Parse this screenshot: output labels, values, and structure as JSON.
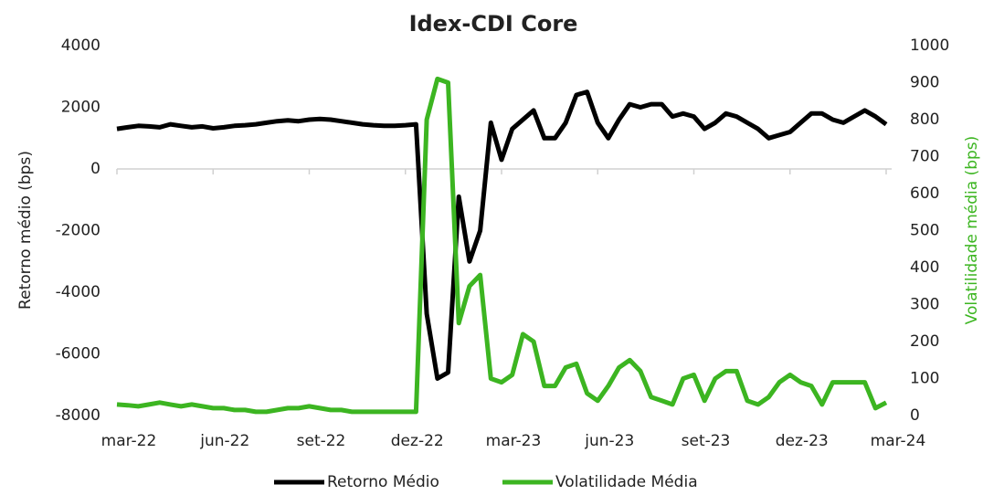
{
  "chart_data": {
    "type": "line",
    "title": "Idex-CDI Core",
    "y_label": "Retorno médio (bps)",
    "y2_label": "Volatilidade média (bps)",
    "categories": [
      "mar-22",
      null,
      null,
      null,
      null,
      null,
      null,
      null,
      null,
      "jun-22",
      null,
      null,
      null,
      null,
      null,
      null,
      null,
      null,
      "set-22",
      null,
      null,
      null,
      null,
      null,
      null,
      null,
      null,
      "dez-22",
      null,
      null,
      null,
      null,
      null,
      null,
      null,
      null,
      "mar-23",
      null,
      null,
      null,
      null,
      null,
      null,
      null,
      null,
      "jun-23",
      null,
      null,
      null,
      null,
      null,
      null,
      null,
      null,
      "set-23",
      null,
      null,
      null,
      null,
      null,
      null,
      null,
      null,
      "dez-23",
      null,
      null,
      null,
      null,
      null,
      null,
      null,
      null,
      "mar-24"
    ],
    "series": [
      {
        "name": "Retorno Médio",
        "color": "#000000",
        "axis": "y",
        "values": [
          1300,
          1350,
          1400,
          1380,
          1350,
          1450,
          1400,
          1350,
          1380,
          1320,
          1350,
          1400,
          1420,
          1450,
          1500,
          1550,
          1580,
          1550,
          1600,
          1620,
          1600,
          1550,
          1500,
          1450,
          1420,
          1400,
          1400,
          1420,
          1450,
          -4700,
          -6800,
          -6600,
          -900,
          -3000,
          -2000,
          1500,
          300,
          1300,
          1600,
          1900,
          1000,
          1000,
          1500,
          2400,
          2500,
          1500,
          1000,
          1600,
          2100,
          2000,
          2100,
          2100,
          1700,
          1800,
          1700,
          1300,
          1500,
          1800,
          1700,
          1500,
          1300,
          1000,
          1100,
          1200,
          1500,
          1800,
          1800,
          1600,
          1500,
          1700,
          1900,
          1700,
          1450
        ]
      },
      {
        "name": "Volatilidade Média",
        "color": "#3cb521",
        "axis": "y2",
        "values": [
          30,
          28,
          25,
          30,
          35,
          30,
          25,
          30,
          25,
          20,
          20,
          15,
          15,
          10,
          10,
          15,
          20,
          20,
          25,
          20,
          15,
          15,
          10,
          10,
          10,
          10,
          10,
          10,
          10,
          800,
          910,
          900,
          250,
          350,
          380,
          100,
          90,
          110,
          220,
          200,
          80,
          80,
          130,
          140,
          60,
          40,
          80,
          130,
          150,
          120,
          50,
          40,
          30,
          100,
          110,
          40,
          100,
          120,
          120,
          40,
          30,
          50,
          90,
          110,
          90,
          80,
          30,
          90,
          90,
          90,
          90,
          20,
          35
        ]
      }
    ],
    "ylim": [
      -8000,
      4000
    ],
    "yticks": [
      -8000,
      -6000,
      -4000,
      -2000,
      0,
      2000,
      4000
    ],
    "y2lim": [
      0,
      1000
    ],
    "y2ticks": [
      0,
      100,
      200,
      300,
      400,
      500,
      600,
      700,
      800,
      900,
      1000
    ],
    "y2_color": "#3cb521",
    "legend": "bottom"
  }
}
